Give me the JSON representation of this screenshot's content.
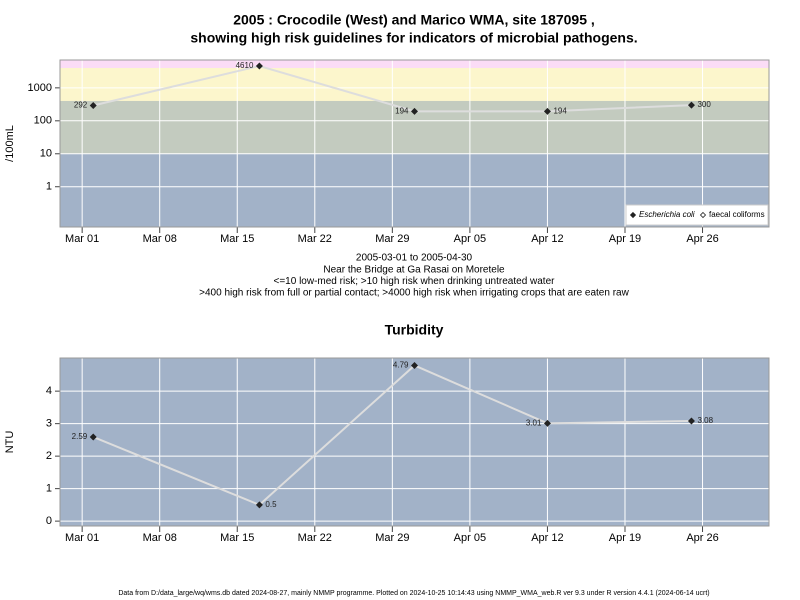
{
  "chart_data": [
    {
      "type": "line",
      "title": [
        "2005 : Crocodile (West) and Marico WMA, site 187095 ,",
        "showing high risk guidelines for indicators of microbial pathogens."
      ],
      "subtitle": [
        "2005-03-01 to 2005-04-30",
        "Near the Bridge at Ga Rasai on Moretele",
        "<=10 low-med risk; >10 high risk when drinking untreated water",
        ">400 high risk from full or partial contact; >4000 high risk when irrigating crops that are eaten raw"
      ],
      "y_label": "/100mL",
      "log_scale": true,
      "x": [
        "2005-03-02",
        "2005-03-17",
        "2005-03-31",
        "2005-04-12",
        "2005-04-25"
      ],
      "series": [
        {
          "name": "Escherichia coli",
          "color": "#222222",
          "values": [
            292,
            4610,
            194,
            194,
            300
          ]
        },
        {
          "name": "faecal coliforms",
          "color": "#ffffff",
          "values": [
            null,
            null,
            null,
            null,
            null
          ]
        }
      ],
      "line_color": "#dddddd",
      "background": "#a2b2c8",
      "bands": [
        {
          "from": 10,
          "to": 400,
          "color": "#c3cbbf"
        },
        {
          "from": 400,
          "to": 4000,
          "color": "#fcf6cc"
        },
        {
          "from": 4000,
          "to": 7000,
          "color": "#fbdcf6"
        }
      ],
      "xlim": [
        "2005-02-27",
        "2005-05-02"
      ],
      "xticks": [
        {
          "value": "2005-03-01",
          "label": "Mar 01"
        },
        {
          "value": "2005-03-08",
          "label": "Mar 08"
        },
        {
          "value": "2005-03-15",
          "label": "Mar 15"
        },
        {
          "value": "2005-03-22",
          "label": "Mar 22"
        },
        {
          "value": "2005-03-29",
          "label": "Mar 29"
        },
        {
          "value": "2005-04-05",
          "label": "Apr 05"
        },
        {
          "value": "2005-04-12",
          "label": "Apr 12"
        },
        {
          "value": "2005-04-19",
          "label": "Apr 19"
        },
        {
          "value": "2005-04-26",
          "label": "Apr 26"
        }
      ],
      "ylim": [
        0.06,
        7000
      ],
      "yticks": [
        1,
        10,
        100,
        1000
      ],
      "grid": true,
      "legend": "lower right"
    },
    {
      "type": "line",
      "title": "Turbidity",
      "y_label": "NTU",
      "log_scale": false,
      "x": [
        "2005-03-02",
        "2005-03-17",
        "2005-03-31",
        "2005-04-12",
        "2005-04-25"
      ],
      "series": [
        {
          "name": "Turbidity",
          "color": "#222222",
          "values": [
            2.59,
            0.5,
            4.79,
            3.01,
            3.08
          ]
        }
      ],
      "line_color": "#dddddd",
      "background": "#a2b2c8",
      "xlim": [
        "2005-02-27",
        "2005-05-02"
      ],
      "xticks": [
        {
          "value": "2005-03-01",
          "label": "Mar 01"
        },
        {
          "value": "2005-03-08",
          "label": "Mar 08"
        },
        {
          "value": "2005-03-15",
          "label": "Mar 15"
        },
        {
          "value": "2005-03-22",
          "label": "Mar 22"
        },
        {
          "value": "2005-03-29",
          "label": "Mar 29"
        },
        {
          "value": "2005-04-05",
          "label": "Apr 05"
        },
        {
          "value": "2005-04-12",
          "label": "Apr 12"
        },
        {
          "value": "2005-04-19",
          "label": "Apr 19"
        },
        {
          "value": "2005-04-26",
          "label": "Apr 26"
        }
      ],
      "ylim": [
        -0.15,
        5.02
      ],
      "yticks": [
        0,
        1,
        2,
        3,
        4
      ],
      "grid": true
    }
  ],
  "footer": "Data from D:/data_large/wq/wms.db dated 2024-08-27, mainly NMMP programme. Plotted on 2024-10-25 10:14:43 using NMMP_WMA_web.R ver 9.3 under R version 4.4.1 (2024-06-14 ucrt)"
}
